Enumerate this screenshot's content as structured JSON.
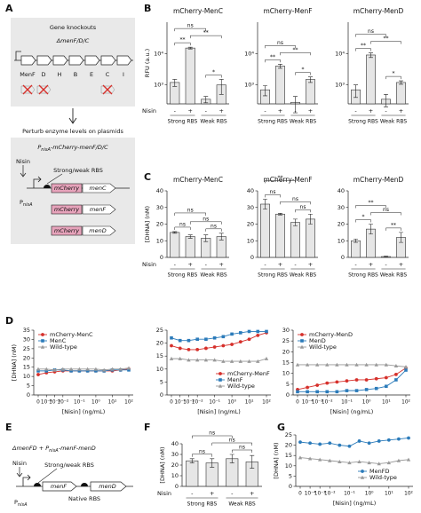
{
  "panel_labels": [
    "A",
    "B",
    "C",
    "D",
    "E",
    "F",
    "G"
  ],
  "diagram_a": {
    "box_title": "Gene knockouts",
    "strain": "ΔmenF/D/C",
    "genes": [
      "MenF",
      "D",
      "H",
      "B",
      "E",
      "C",
      "I"
    ],
    "arrow_text": "Perturb enzyme levels on plasmids",
    "construct": [
      "P",
      "nisA",
      "-mCherry-menF/D/C"
    ],
    "inducer": "Nisin",
    "rbs": "Strong/weak RBS",
    "promoter": [
      "P",
      "nisA"
    ],
    "plasmids": [
      [
        "mCherry",
        "menC"
      ],
      [
        "mCherry",
        "menF"
      ],
      [
        "mCherry",
        "menD"
      ]
    ]
  },
  "diagram_e": {
    "strain": [
      "ΔmenFD + P",
      "nisA",
      "-menF-menD"
    ],
    "inducer": "Nisin",
    "rbs": "Strong/weak RBS",
    "genes": [
      "menF",
      "menD"
    ],
    "native_rbs": "Native RBS",
    "promoter": [
      "P",
      "nisA"
    ]
  },
  "chart_data": [
    {
      "type": "bar",
      "title": "mCherry-MenC",
      "ylabel": "RFU (a.u.)",
      "log": true,
      "ylim": [
        250,
        100000
      ],
      "yticks": [
        {
          "value": 1000,
          "label": "10³"
        },
        {
          "value": 10000,
          "label": "10⁴"
        }
      ],
      "inducer_label": "Nisin",
      "categories": [
        "-",
        "+",
        "-",
        "+"
      ],
      "groups": [
        "Strong RBS",
        "Weak RBS"
      ],
      "values": [
        1200,
        15000,
        350,
        1000
      ],
      "errors": [
        300,
        1000,
        80,
        500
      ],
      "color": "#e6e6e6",
      "significance": [
        "**",
        "ns",
        "**",
        "*"
      ]
    },
    {
      "type": "bar",
      "title": "mCherry-MenF",
      "log": true,
      "ylim": [
        250,
        100000
      ],
      "yticks": [
        {
          "value": 1000,
          "label": "10³"
        },
        {
          "value": 10000,
          "label": "10⁴"
        }
      ],
      "categories": [
        "-",
        "+",
        "-",
        "+"
      ],
      "groups": [
        "Strong RBS",
        "Weak RBS"
      ],
      "values": [
        700,
        4000,
        280,
        1500
      ],
      "errors": [
        250,
        600,
        150,
        300
      ],
      "color": "#e6e6e6",
      "significance": [
        "**",
        "ns",
        "**",
        "*"
      ]
    },
    {
      "type": "bar",
      "title": "mCherry-MenD",
      "log": true,
      "ylim": [
        250,
        100000
      ],
      "yticks": [
        {
          "value": 1000,
          "label": "10³"
        },
        {
          "value": 10000,
          "label": "10⁴"
        }
      ],
      "categories": [
        "-",
        "+",
        "-",
        "+"
      ],
      "groups": [
        "Strong RBS",
        "Weak RBS"
      ],
      "values": [
        700,
        9000,
        350,
        1200
      ],
      "errors": [
        300,
        1500,
        150,
        150
      ],
      "color": "#e6e6e6",
      "significance": [
        "**",
        "ns",
        "**",
        "*"
      ]
    },
    {
      "type": "bar",
      "title": "mCherry-MenC",
      "ylabel": "[DHNA] (nM)",
      "ylim": [
        0,
        40
      ],
      "yticks": [
        0,
        10,
        20,
        30,
        40
      ],
      "inducer_label": "Nisin",
      "categories": [
        "-",
        "+",
        "-",
        "+"
      ],
      "groups": [
        "Strong RBS",
        "Weak RBS"
      ],
      "values": [
        15,
        12.5,
        11.5,
        12.5
      ],
      "errors": [
        0.5,
        1,
        2,
        2
      ],
      "color": "#e6e6e6",
      "significance": [
        "ns",
        "ns",
        "ns",
        "ns"
      ]
    },
    {
      "type": "bar",
      "title": "mCherry-MenF",
      "ylim": [
        0,
        40
      ],
      "yticks": [
        0,
        10,
        20,
        30,
        40
      ],
      "categories": [
        "-",
        "+",
        "-",
        "+"
      ],
      "groups": [
        "Strong RBS",
        "Weak RBS"
      ],
      "values": [
        32,
        26,
        21,
        23
      ],
      "errors": [
        3,
        0.5,
        2,
        3
      ],
      "color": "#e6e6e6",
      "significance": [
        "**",
        "ns",
        "ns",
        "ns"
      ]
    },
    {
      "type": "bar",
      "title": "mCherry-MenD",
      "ylim": [
        0,
        40
      ],
      "yticks": [
        0,
        10,
        20,
        30,
        40
      ],
      "categories": [
        "-",
        "+",
        "-",
        "+"
      ],
      "groups": [
        "Strong RBS",
        "Weak RBS"
      ],
      "values": [
        10,
        17,
        0.5,
        12
      ],
      "errors": [
        1,
        3,
        0.3,
        3
      ],
      "color": "#e6e6e6",
      "significance": [
        "**",
        "*",
        "ns",
        "**"
      ]
    },
    {
      "type": "line",
      "ylabel": "[DHNA] (nM)",
      "xlabel": "[Nisin] (ng/mL)",
      "categories": [
        "0",
        "10⁻⁴",
        "10⁻³",
        "10⁻²",
        null,
        "10⁻¹",
        null,
        "10⁰",
        null,
        "10¹",
        null,
        "10²"
      ],
      "ylim": [
        0,
        35
      ],
      "yticks": [
        0,
        5,
        10,
        15,
        20,
        25,
        30,
        35
      ],
      "legend": "upper left",
      "series": [
        {
          "name": "mCherry-MenC",
          "color": "#d6302b",
          "marker": "circle",
          "values": [
            11,
            12,
            12.5,
            13,
            13,
            13,
            13,
            13,
            13,
            13,
            13.5,
            14
          ]
        },
        {
          "name": "MenC",
          "color": "#2b7bba",
          "marker": "square",
          "values": [
            13,
            13,
            13.5,
            13.5,
            13,
            13,
            13,
            13,
            13,
            13.5,
            13.5,
            13.5
          ]
        },
        {
          "name": "Wild-type",
          "color": "#999999",
          "marker": "triangle",
          "values": [
            14,
            14,
            13.5,
            14,
            14,
            14,
            14,
            14,
            13.5,
            14,
            14,
            14.5
          ]
        }
      ]
    },
    {
      "type": "line",
      "xlabel": "[Nisin] (ng/mL)",
      "categories": [
        "0",
        "10⁻⁴",
        "10⁻³",
        "10⁻²",
        null,
        "10⁻¹",
        null,
        "10⁰",
        null,
        "10¹",
        null,
        "10²"
      ],
      "ylim": [
        0,
        25
      ],
      "yticks": [
        0,
        5,
        10,
        15,
        20,
        25
      ],
      "legend": "lower right",
      "series": [
        {
          "name": "mCherry-MenF",
          "color": "#d6302b",
          "marker": "circle",
          "values": [
            19,
            18,
            17.5,
            17.5,
            18,
            18.5,
            19,
            19.5,
            20.5,
            21.5,
            23,
            24
          ]
        },
        {
          "name": "MenF",
          "color": "#2b7bba",
          "marker": "square",
          "values": [
            22,
            21,
            21,
            21.5,
            21.5,
            22,
            22.5,
            23.5,
            24,
            24.5,
            24.5,
            24.5
          ]
        },
        {
          "name": "Wild-type",
          "color": "#999999",
          "marker": "triangle",
          "values": [
            14,
            14,
            13.5,
            13.5,
            13.5,
            13.5,
            13,
            13,
            13,
            13,
            13,
            14
          ]
        }
      ]
    },
    {
      "type": "line",
      "xlabel": "[Nisin] (ng/mL)",
      "categories": [
        "0",
        "10⁻⁴",
        "10⁻³",
        "10⁻²",
        null,
        "10⁻¹",
        null,
        "10⁰",
        null,
        "10¹",
        null,
        "10²"
      ],
      "ylim": [
        0,
        30
      ],
      "yticks": [
        0,
        5,
        10,
        15,
        20,
        25,
        30
      ],
      "legend": "upper left",
      "series": [
        {
          "name": "mCherry-MenD",
          "color": "#d6302b",
          "marker": "circle",
          "values": [
            2.5,
            3.5,
            4.5,
            5.5,
            6,
            6.5,
            7,
            7,
            7.5,
            8,
            9.5,
            12.5
          ]
        },
        {
          "name": "MenD",
          "color": "#2b7bba",
          "marker": "square",
          "values": [
            1.5,
            1.5,
            1.5,
            1.5,
            1.5,
            2,
            2,
            2.5,
            3,
            4,
            7,
            11.5
          ]
        },
        {
          "name": "Wild-type",
          "color": "#999999",
          "marker": "triangle",
          "values": [
            14,
            14,
            14,
            14,
            14,
            14,
            14,
            14,
            14,
            14,
            13.5,
            13
          ]
        }
      ]
    },
    {
      "type": "bar",
      "ylabel": "[DHNA] (nM)",
      "ylim": [
        0,
        40
      ],
      "yticks": [
        0,
        10,
        20,
        30,
        40
      ],
      "inducer_label": "Nisin",
      "categories": [
        "-",
        "+",
        "-",
        "+"
      ],
      "groups": [
        "Strong RBS",
        "Weak RBS"
      ],
      "values": [
        24,
        22,
        26,
        23
      ],
      "errors": [
        2,
        4,
        4,
        6
      ],
      "color": "#e6e6e6",
      "significance": [
        "ns",
        "ns",
        "ns",
        "ns"
      ]
    },
    {
      "type": "line",
      "ylabel": "[DHNA] (nM)",
      "xlabel": "[Nisin] (ng/mL)",
      "categories": [
        "0",
        "10⁻⁴",
        "10⁻³",
        "10⁻²",
        null,
        "10⁻¹",
        null,
        "10⁰",
        null,
        "10¹",
        null,
        "10²"
      ],
      "ylim": [
        0,
        25
      ],
      "yticks": [
        0,
        5,
        10,
        15,
        20,
        25
      ],
      "legend": "lower right",
      "series": [
        {
          "name": "MenFD",
          "color": "#2b7bba",
          "marker": "circle",
          "values": [
            21.5,
            21,
            20.5,
            21,
            20,
            19.5,
            22,
            21,
            22,
            22.5,
            23,
            23.5
          ]
        },
        {
          "name": "Wild-type",
          "color": "#999999",
          "marker": "triangle",
          "values": [
            14,
            13.5,
            13,
            12.5,
            12,
            11.5,
            12,
            11.5,
            11,
            11.5,
            12.5,
            13
          ]
        }
      ]
    }
  ]
}
